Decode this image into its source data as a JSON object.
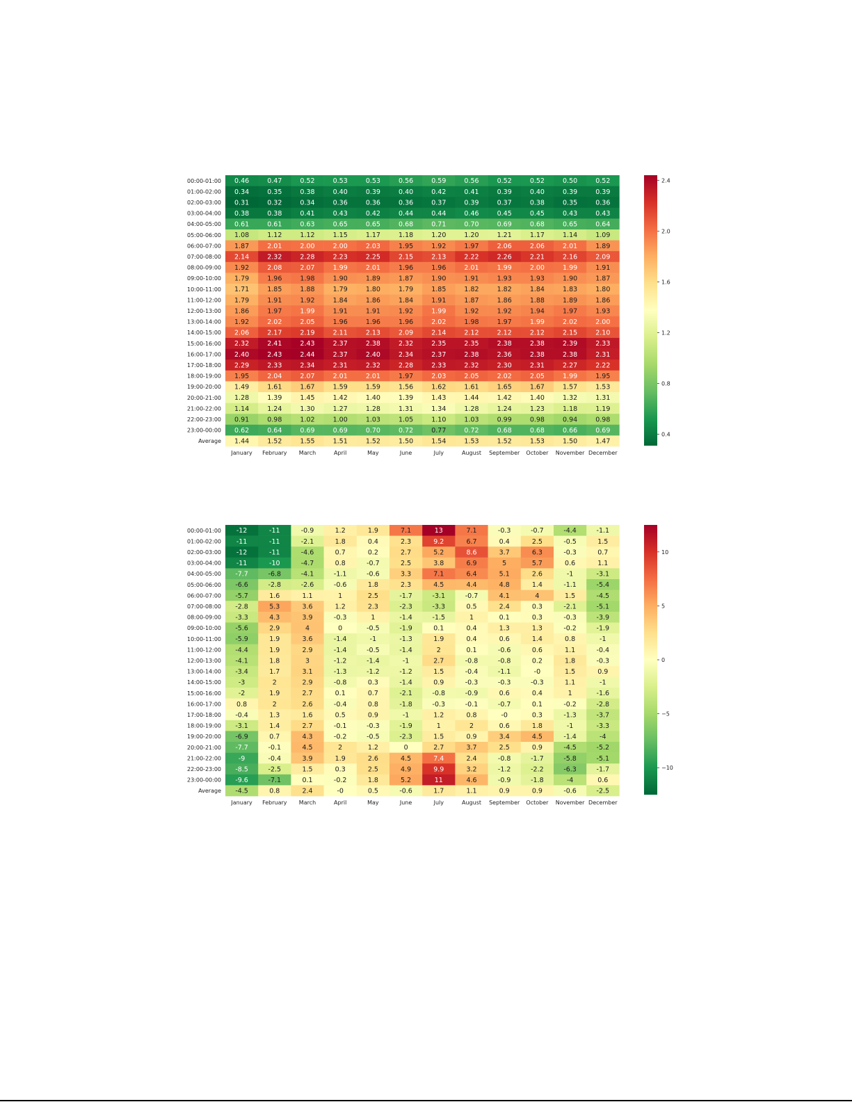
{
  "colors": {
    "low": "#006837",
    "mid": "#ffffbf",
    "high": "#a50026"
  },
  "chart_data": [
    {
      "type": "heatmap",
      "title": "",
      "xlabel": "",
      "ylabel": "",
      "colormap": "RdYlGn_r",
      "value_range": [
        0.31,
        2.44
      ],
      "decimals": 2,
      "colorbar_ticks": [
        "0.4",
        "0.8",
        "1.2",
        "1.6",
        "2.0",
        "2.4"
      ],
      "rows": [
        "00:00-01:00",
        "01:00-02:00",
        "02:00-03:00",
        "03:00-04:00",
        "04:00-05:00",
        "05:00-06:00",
        "06:00-07:00",
        "07:00-08:00",
        "08:00-09:00",
        "09:00-10:00",
        "10:00-11:00",
        "11:00-12:00",
        "12:00-13:00",
        "13:00-14:00",
        "14:00-15:00",
        "15:00-16:00",
        "16:00-17:00",
        "17:00-18:00",
        "18:00-19:00",
        "19:00-20:00",
        "20:00-21:00",
        "21:00-22:00",
        "22:00-23:00",
        "23:00-00:00",
        "Average"
      ],
      "columns": [
        "January",
        "February",
        "March",
        "April",
        "May",
        "June",
        "July",
        "August",
        "September",
        "October",
        "November",
        "December"
      ],
      "values": [
        [
          0.46,
          0.47,
          0.52,
          0.53,
          0.53,
          0.56,
          0.59,
          0.56,
          0.52,
          0.52,
          0.5,
          0.52
        ],
        [
          0.34,
          0.35,
          0.38,
          0.4,
          0.39,
          0.4,
          0.42,
          0.41,
          0.39,
          0.4,
          0.39,
          0.39
        ],
        [
          0.31,
          0.32,
          0.34,
          0.36,
          0.36,
          0.36,
          0.37,
          0.39,
          0.37,
          0.38,
          0.35,
          0.36
        ],
        [
          0.38,
          0.38,
          0.41,
          0.43,
          0.42,
          0.44,
          0.44,
          0.46,
          0.45,
          0.45,
          0.43,
          0.43
        ],
        [
          0.61,
          0.61,
          0.63,
          0.65,
          0.65,
          0.68,
          0.71,
          0.7,
          0.69,
          0.68,
          0.65,
          0.64
        ],
        [
          1.08,
          1.12,
          1.12,
          1.15,
          1.17,
          1.18,
          1.2,
          1.2,
          1.21,
          1.17,
          1.14,
          1.09
        ],
        [
          1.87,
          2.01,
          2.0,
          2.0,
          2.03,
          1.95,
          1.92,
          1.97,
          2.06,
          2.06,
          2.01,
          1.89
        ],
        [
          2.14,
          2.32,
          2.28,
          2.23,
          2.25,
          2.15,
          2.13,
          2.22,
          2.26,
          2.21,
          2.16,
          2.09
        ],
        [
          1.92,
          2.08,
          2.07,
          1.99,
          2.01,
          1.96,
          1.96,
          2.01,
          1.99,
          2.0,
          1.99,
          1.91
        ],
        [
          1.79,
          1.96,
          1.98,
          1.9,
          1.89,
          1.87,
          1.9,
          1.91,
          1.93,
          1.93,
          1.9,
          1.87
        ],
        [
          1.71,
          1.85,
          1.88,
          1.79,
          1.8,
          1.79,
          1.85,
          1.82,
          1.82,
          1.84,
          1.83,
          1.8
        ],
        [
          1.79,
          1.91,
          1.92,
          1.84,
          1.86,
          1.84,
          1.91,
          1.87,
          1.86,
          1.88,
          1.89,
          1.86
        ],
        [
          1.86,
          1.97,
          1.99,
          1.91,
          1.91,
          1.92,
          1.99,
          1.92,
          1.92,
          1.94,
          1.97,
          1.93
        ],
        [
          1.92,
          2.02,
          2.05,
          1.96,
          1.96,
          1.96,
          2.02,
          1.98,
          1.97,
          1.99,
          2.02,
          2.0
        ],
        [
          2.06,
          2.17,
          2.19,
          2.11,
          2.13,
          2.09,
          2.14,
          2.12,
          2.12,
          2.12,
          2.15,
          2.1
        ],
        [
          2.32,
          2.41,
          2.43,
          2.37,
          2.38,
          2.32,
          2.35,
          2.35,
          2.38,
          2.38,
          2.39,
          2.33
        ],
        [
          2.4,
          2.43,
          2.44,
          2.37,
          2.4,
          2.34,
          2.37,
          2.38,
          2.36,
          2.38,
          2.38,
          2.31
        ],
        [
          2.29,
          2.33,
          2.34,
          2.31,
          2.32,
          2.28,
          2.33,
          2.32,
          2.3,
          2.31,
          2.27,
          2.22
        ],
        [
          1.95,
          2.04,
          2.07,
          2.01,
          2.01,
          1.97,
          2.03,
          2.05,
          2.02,
          2.05,
          1.99,
          1.95
        ],
        [
          1.49,
          1.61,
          1.67,
          1.59,
          1.59,
          1.56,
          1.62,
          1.61,
          1.65,
          1.67,
          1.57,
          1.53
        ],
        [
          1.28,
          1.39,
          1.45,
          1.42,
          1.4,
          1.39,
          1.43,
          1.44,
          1.42,
          1.4,
          1.32,
          1.31
        ],
        [
          1.14,
          1.24,
          1.3,
          1.27,
          1.28,
          1.31,
          1.34,
          1.28,
          1.24,
          1.23,
          1.18,
          1.19
        ],
        [
          0.91,
          0.98,
          1.02,
          1.0,
          1.03,
          1.05,
          1.1,
          1.03,
          0.99,
          0.98,
          0.94,
          0.98
        ],
        [
          0.62,
          0.64,
          0.69,
          0.69,
          0.7,
          0.72,
          0.77,
          0.72,
          0.68,
          0.68,
          0.66,
          0.69
        ],
        [
          1.44,
          1.52,
          1.55,
          1.51,
          1.52,
          1.5,
          1.54,
          1.53,
          1.52,
          1.53,
          1.5,
          1.47
        ]
      ]
    },
    {
      "type": "heatmap",
      "title": "",
      "xlabel": "",
      "ylabel": "",
      "colormap": "RdYlGn_r",
      "value_range": [
        -12.5,
        12.5
      ],
      "decimals": null,
      "colorbar_ticks": [
        "10",
        "5",
        "0",
        "−5",
        "−10"
      ],
      "colorbar_tick_values": [
        10,
        5,
        0,
        -5,
        -10
      ],
      "rows": [
        "00:00-01:00",
        "01:00-02:00",
        "02:00-03:00",
        "03:00-04:00",
        "04:00-05:00",
        "05:00-06:00",
        "06:00-07:00",
        "07:00-08:00",
        "08:00-09:00",
        "09:00-10:00",
        "10:00-11:00",
        "11:00-12:00",
        "12:00-13:00",
        "13:00-14:00",
        "14:00-15:00",
        "15:00-16:00",
        "16:00-17:00",
        "17:00-18:00",
        "18:00-19:00",
        "19:00-20:00",
        "20:00-21:00",
        "21:00-22:00",
        "22:00-23:00",
        "23:00-00:00",
        "Average"
      ],
      "columns": [
        "January",
        "February",
        "March",
        "April",
        "May",
        "June",
        "July",
        "August",
        "September",
        "October",
        "November",
        "December"
      ],
      "values": [
        [
          -12,
          -11,
          -0.9,
          1.2,
          1.9,
          7.1,
          13,
          7.1,
          -0.3,
          -0.7,
          -4.4,
          -1.1
        ],
        [
          -11,
          -11,
          -2.1,
          1.8,
          0.4,
          2.3,
          9.2,
          6.7,
          0.4,
          2.5,
          -0.5,
          1.5
        ],
        [
          -12,
          -11,
          -4.6,
          0.7,
          0.2,
          2.7,
          5.2,
          8.6,
          3.7,
          6.3,
          -0.3,
          0.7
        ],
        [
          -11,
          -10,
          -4.7,
          0.8,
          -0.7,
          2.5,
          3.8,
          6.9,
          5,
          5.7,
          0.6,
          1.1
        ],
        [
          -7.7,
          -6.8,
          -4.1,
          -1.1,
          -0.6,
          3.3,
          7.1,
          6.4,
          5.1,
          2.6,
          -1,
          -3.1
        ],
        [
          -6.6,
          -2.8,
          -2.6,
          -0.6,
          1.8,
          2.3,
          4.5,
          4.4,
          4.8,
          1.4,
          -1.1,
          -5.4
        ],
        [
          -5.7,
          1.6,
          1.1,
          1,
          2.5,
          -1.7,
          -3.1,
          -0.7,
          4.1,
          4,
          1.5,
          -4.5
        ],
        [
          -2.8,
          5.3,
          3.6,
          1.2,
          2.3,
          -2.3,
          -3.3,
          0.5,
          2.4,
          0.3,
          -2.1,
          -5.1
        ],
        [
          -3.3,
          4.3,
          3.9,
          -0.3,
          1,
          -1.4,
          -1.5,
          1,
          0.1,
          0.3,
          -0.3,
          -3.9
        ],
        [
          -5.6,
          2.9,
          4,
          0,
          -0.5,
          -1.9,
          0.1,
          0.4,
          1.3,
          1.3,
          -0.2,
          -1.9
        ],
        [
          -5.9,
          1.9,
          3.6,
          -1.4,
          -1,
          -1.3,
          1.9,
          0.4,
          0.6,
          1.4,
          0.8,
          -1
        ],
        [
          -4.4,
          1.9,
          2.9,
          -1.4,
          -0.5,
          -1.4,
          2,
          0.1,
          -0.6,
          0.6,
          1.1,
          -0.4
        ],
        [
          -4.1,
          1.8,
          3,
          -1.2,
          -1.4,
          -1,
          2.7,
          -0.8,
          -0.8,
          0.2,
          1.8,
          -0.3
        ],
        [
          -3.4,
          1.7,
          3.1,
          -1.3,
          -1.2,
          -1.2,
          1.5,
          -0.4,
          -1.1,
          "-0",
          1.5,
          0.9
        ],
        [
          -3,
          2,
          2.9,
          -0.8,
          0.3,
          -1.4,
          0.9,
          -0.3,
          -0.3,
          -0.3,
          1.1,
          -1
        ],
        [
          -2,
          1.9,
          2.7,
          0.1,
          0.7,
          -2.1,
          -0.8,
          -0.9,
          0.6,
          0.4,
          1,
          -1.6
        ],
        [
          0.8,
          2,
          2.6,
          -0.4,
          0.8,
          -1.8,
          -0.3,
          -0.1,
          -0.7,
          0.1,
          -0.2,
          -2.8
        ],
        [
          -0.4,
          1.3,
          1.6,
          0.5,
          0.9,
          -1,
          1.2,
          0.8,
          "-0",
          0.3,
          -1.3,
          -3.7
        ],
        [
          -3.1,
          1.4,
          2.7,
          -0.1,
          -0.3,
          -1.9,
          1,
          2,
          0.6,
          1.8,
          -1,
          -3.3
        ],
        [
          -6.9,
          0.7,
          4.3,
          -0.2,
          -0.5,
          -2.3,
          1.5,
          0.9,
          3.4,
          4.5,
          -1.4,
          -4
        ],
        [
          -7.7,
          -0.1,
          4.5,
          2,
          1.2,
          0,
          2.7,
          3.7,
          2.5,
          0.9,
          -4.5,
          -5.2
        ],
        [
          -9,
          -0.4,
          3.9,
          1.9,
          2.6,
          4.5,
          7.4,
          2.4,
          -0.8,
          -1.7,
          -5.8,
          -5.1
        ],
        [
          -8.5,
          -2.5,
          1.5,
          0.3,
          2.5,
          4.9,
          9.9,
          3.2,
          -1.2,
          -2.2,
          -6.3,
          -1.7
        ],
        [
          -9.6,
          -7.1,
          0.1,
          -0.2,
          1.8,
          5.2,
          11,
          4.6,
          -0.9,
          -1.8,
          -4,
          0.6
        ],
        [
          -4.5,
          0.8,
          2.4,
          "-0",
          0.5,
          -0.6,
          1.7,
          1.1,
          0.9,
          0.9,
          -0.6,
          -2.5
        ]
      ]
    }
  ]
}
